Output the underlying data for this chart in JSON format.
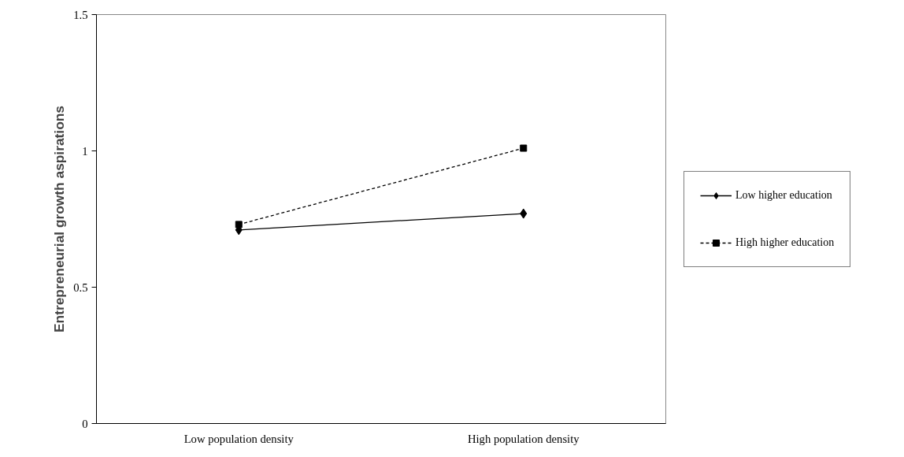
{
  "chart_data": {
    "type": "line",
    "ylabel": "Entrepreneurial growth aspirations",
    "categories": [
      "Low population density",
      "High population density"
    ],
    "series": [
      {
        "name": "Low higher education",
        "color": "#000000",
        "values": [
          0.71,
          0.77
        ],
        "marker": "diamond",
        "line_style": "solid"
      },
      {
        "name": "High higher education",
        "color": "#000000",
        "values": [
          0.73,
          1.01
        ],
        "marker": "square",
        "line_style": "dashed"
      }
    ],
    "ylim": [
      0,
      1.5
    ],
    "yticks": [
      0,
      0.5,
      1,
      1.5
    ],
    "grid": false,
    "legend": "right"
  }
}
